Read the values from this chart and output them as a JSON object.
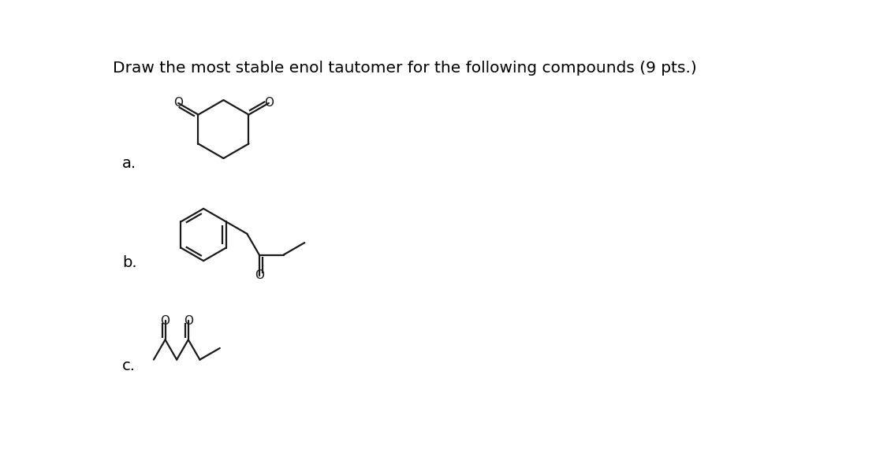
{
  "title": "Draw the most stable enol tautomer for the following compounds (9 pts.)",
  "title_fontsize": 14.5,
  "bg_color": "#ffffff",
  "label_a": "a.",
  "label_b": "b.",
  "label_c": "c.",
  "label_fontsize": 14,
  "bond_lw": 1.6,
  "bond_color": "#1a1a1a",
  "o_fontsize": 11
}
